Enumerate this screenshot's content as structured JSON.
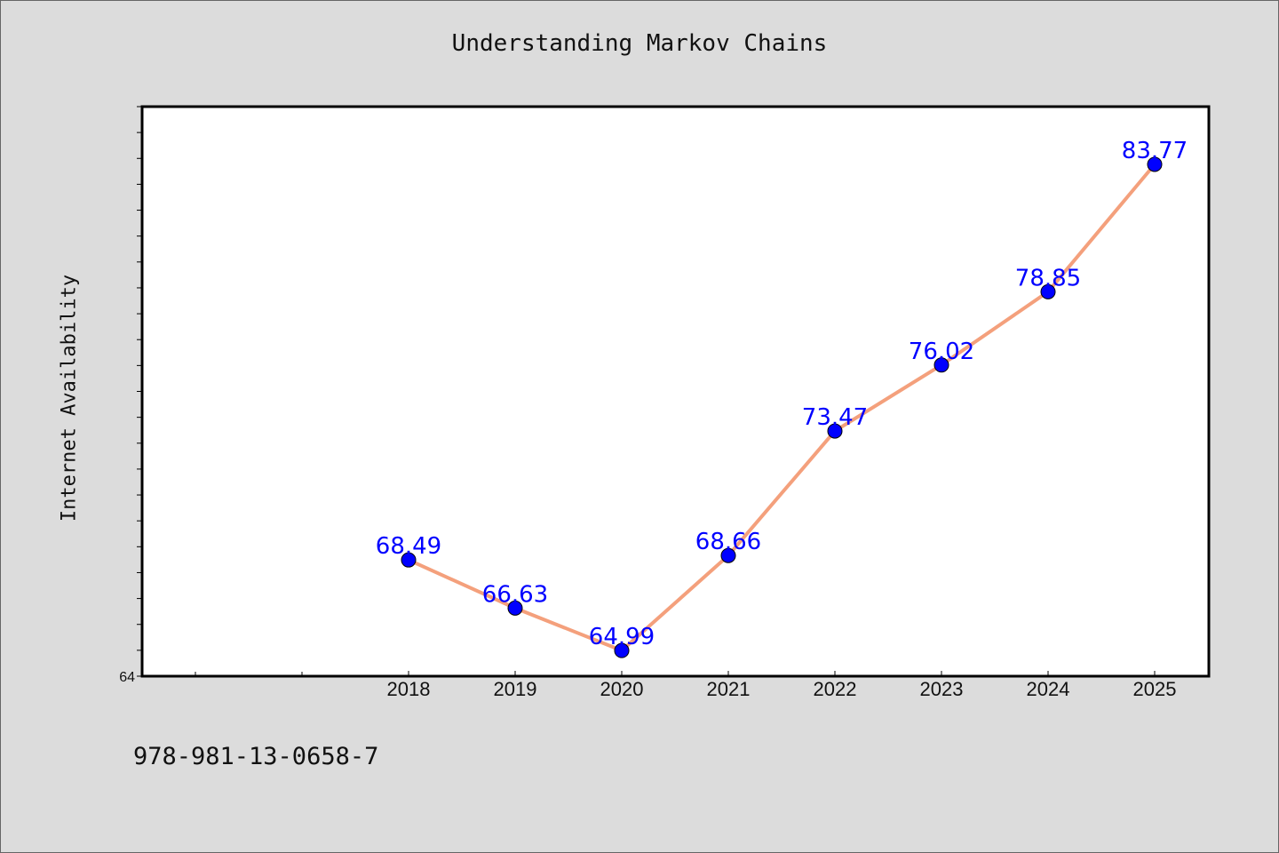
{
  "page": {
    "title": "Understanding Markov Chains",
    "footer_text": "978-981-13-0658-7"
  },
  "chart_data": {
    "type": "line",
    "title": "Understanding Markov Chains",
    "xlabel": "",
    "ylabel": "Internet Availability",
    "categories": [
      "2018",
      "2019",
      "2020",
      "2021",
      "2022",
      "2023",
      "2024",
      "2025"
    ],
    "series": [
      {
        "values": [
          68.49,
          66.63,
          64.99,
          68.66,
          73.47,
          76.02,
          78.85,
          83.77
        ],
        "data_labels": [
          "68.49",
          "66.63",
          "64.99",
          "68.66",
          "73.47",
          "76.02",
          "78.85",
          "83.77"
        ],
        "line_color": "#f4a07c",
        "marker_color": "#0000ff",
        "label_color": "#0000ff"
      }
    ],
    "y_tick_labels": [
      "64"
    ],
    "ylim": [
      64,
      86
    ],
    "y_minor_step": 1,
    "x_slots_before_first": 2,
    "grid": false,
    "legend": "none"
  }
}
